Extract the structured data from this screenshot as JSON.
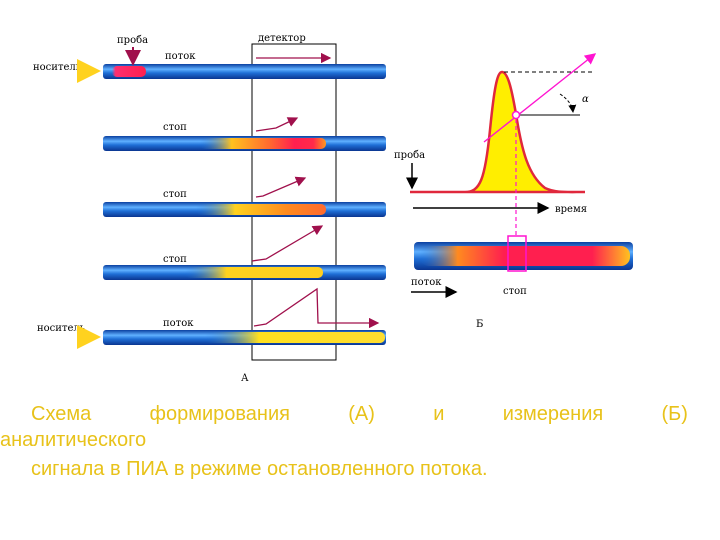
{
  "diagram": {
    "labels": {
      "sample": "проба",
      "flow": "поток",
      "detector": "детектор",
      "carrier": "носитель",
      "stop": "стоп",
      "part_a": "А",
      "part_b": "Б",
      "time": "время",
      "alpha": "α"
    },
    "rows": [
      {
        "left_label": "носитель",
        "mid_label": "поток"
      },
      {
        "mid_label": "стоп"
      },
      {
        "mid_label": "стоп"
      },
      {
        "mid_label": "стоп"
      },
      {
        "left_label": "носитель",
        "mid_label": "поток"
      }
    ],
    "colors": {
      "tube_blue": "#1f6fd6",
      "tube_light": "#5fb0ff",
      "sample_red": "#ff1f4f",
      "sample_orange": "#ff8a1f",
      "sample_yellow": "#ffd21f",
      "arrow": "#a0104c",
      "peak_fill": "#ffee00",
      "peak_line": "#e0283c",
      "magenta": "#ff14d0",
      "caption": "#e8c21a"
    }
  },
  "caption": {
    "words_line1": [
      "Схема",
      "формирования",
      "(А)",
      "и",
      "измерения",
      "(Б)"
    ],
    "line2": "аналитического",
    "line3": "сигнала в ПИА в режиме остановленного потока."
  }
}
